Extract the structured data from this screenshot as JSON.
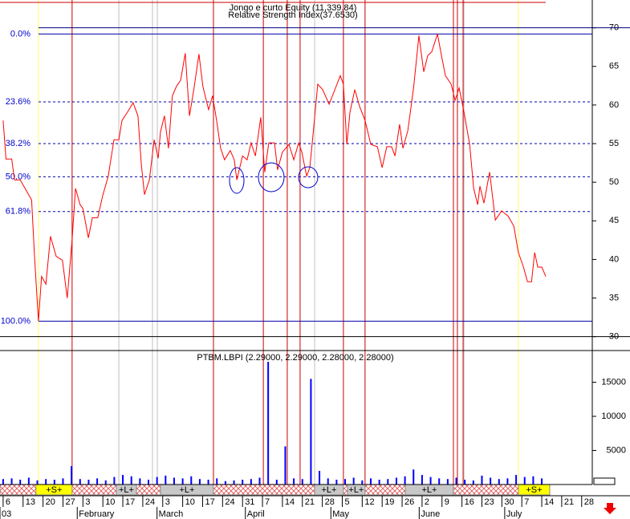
{
  "chart_data": [
    {
      "type": "line",
      "title": "Jongo e curto Equity (11,339.84)",
      "subtitle": "Relative Strength Index(37.6530)",
      "color": "#ff0000",
      "x": [
        0,
        1,
        3,
        4,
        6,
        10,
        11,
        12.4,
        13.5,
        15,
        16.6,
        18.6,
        20.8,
        22.5,
        24.2,
        25.4,
        27,
        28,
        29.9,
        31.3,
        33.2,
        34.9,
        36.9,
        38.9,
        40.6,
        41.7,
        44,
        45.6,
        47.3,
        48.5,
        49.6,
        51.3,
        53,
        54.4,
        55.2,
        56.6,
        58,
        59.4,
        60.8,
        62.3,
        63.9,
        65.4,
        67,
        68.7,
        70.1,
        72.1,
        73.5,
        74.9,
        76.3,
        77.7,
        79.7,
        81.1,
        82,
        84,
        85.6,
        87,
        88.5,
        90.4,
        91.8,
        93.2,
        95.2,
        96.3,
        98,
        100.3,
        102,
        103.7,
        104.8,
        106.5,
        107.6,
        108.7,
        110.4,
        112.1,
        114.4,
        116,
        118.3,
        119.4,
        120.6,
        121.7,
        123.4,
        125.1,
        127,
        129,
        131.3,
        133,
        134.6,
        136.3,
        137.5,
        139.1,
        140.3,
        142,
        144,
        145.9,
        147.6,
        149,
        150.4,
        152.4,
        153.8,
        155.2,
        157.2,
        158.6,
        160,
        161.7,
        163.7,
        165.1,
        166.5,
        167.3,
        168.7,
        170.7,
        172.7,
        174.9,
        177.2,
        179.2,
        180.8,
        182.5,
        184,
        185.4,
        186.5,
        187.6,
        189,
        190.4
      ],
      "values": [
        58,
        53,
        53,
        50.3,
        50.3,
        47.7,
        40.4,
        32,
        37.8,
        36.8,
        43,
        40.4,
        39.9,
        35,
        42.5,
        49.2,
        47.1,
        46.6,
        42.8,
        45.4,
        45.4,
        48.2,
        50.8,
        55.5,
        55.5,
        58,
        59.3,
        60.3,
        58.6,
        52.3,
        48.4,
        50.3,
        55.5,
        53.1,
        56.5,
        58.6,
        54.4,
        61.2,
        62.4,
        63.2,
        66.7,
        58.6,
        62.2,
        66.6,
        62.4,
        59.4,
        61.2,
        58,
        54.4,
        52.9,
        54.1,
        52.9,
        50.3,
        53.4,
        52.9,
        55.1,
        53.4,
        58.4,
        51.3,
        55.1,
        55.1,
        51.6,
        53.9,
        54.9,
        52.9,
        55.1,
        53.9,
        50.8,
        51.9,
        56,
        62.7,
        62,
        60.1,
        61.6,
        63.8,
        62.7,
        54.9,
        59.1,
        62,
        59.8,
        58,
        54.9,
        54.6,
        51.9,
        54.6,
        54.6,
        53.4,
        57.5,
        54.4,
        56.7,
        62.2,
        69,
        64.3,
        66.4,
        66.9,
        69.2,
        66.4,
        63.8,
        62.7,
        60.6,
        62.2,
        59.1,
        54.9,
        49.2,
        47.1,
        49.5,
        47.3,
        51.3,
        45.1,
        46.3,
        45.6,
        44.3,
        40.9,
        39.1,
        37.1,
        37.1,
        40.9,
        39,
        39,
        37.8
      ],
      "xlim": [
        -1.1,
        205.6
      ],
      "ylim": [
        28.2,
        73.6
      ],
      "yticks": [
        30,
        35,
        40,
        45,
        50,
        55,
        60,
        65,
        70
      ],
      "fib_levels": [
        {
          "label": "0.0%",
          "value": 69.2
        },
        {
          "label": "23.6%",
          "value": 60.4
        },
        {
          "label": "38.2%",
          "value": 55
        },
        {
          "label": "50.0%",
          "value": 50.7
        },
        {
          "label": "61.8%",
          "value": 46.2
        },
        {
          "label": "100.0%",
          "value": 32
        }
      ],
      "signal_lines": [
        {
          "color": "#cc0000",
          "x": [
            24.2,
            73.8,
            91.3,
            99.7,
            104.2,
            119.4,
            127,
            158,
            159.4,
            161.4
          ]
        },
        {
          "color": "#ffff66",
          "x": [
            12.4,
            180.8
          ]
        },
        {
          "color": "#c0c0c0",
          "x": [
            40.6,
            52.4,
            54.1,
            109.3,
            161.7
          ]
        }
      ]
    },
    {
      "type": "bar",
      "title": "PTBM.LBPI (2.29000, 2.29000, 2.28000, 2.28000)",
      "color": "#0000ff",
      "x": [
        0,
        3,
        6,
        9,
        12,
        15,
        18,
        21,
        24,
        27,
        30,
        33,
        36,
        39,
        42,
        45,
        48,
        51,
        54,
        57,
        60,
        63,
        66,
        69,
        72,
        75,
        78,
        81,
        84,
        87,
        90,
        93,
        96,
        99,
        102,
        105,
        108,
        111,
        114,
        117,
        120,
        123,
        126,
        129,
        132,
        135,
        138,
        141,
        144,
        147,
        150,
        153,
        156,
        159,
        162,
        165,
        168,
        171,
        174,
        177,
        180,
        183,
        186,
        189
      ],
      "values": [
        800,
        900,
        700,
        1000,
        600,
        800,
        700,
        900,
        2700,
        800,
        700,
        900,
        600,
        1100,
        1400,
        1200,
        900,
        700,
        1100,
        1300,
        1000,
        900,
        1200,
        800,
        700,
        900,
        500,
        600,
        700,
        800,
        1000,
        18000,
        700,
        5600,
        900,
        800,
        15500,
        2000,
        900,
        700,
        800,
        1000,
        600,
        900,
        700,
        800,
        1000,
        1200,
        2200,
        1400,
        1100,
        900,
        800,
        1000,
        700,
        600,
        1300,
        1000,
        800,
        900,
        1400,
        1100,
        1200,
        900
      ],
      "ylim": [
        0,
        19650
      ],
      "yticks": [
        5000,
        10000,
        15000
      ]
    }
  ],
  "x_axis": {
    "ticks": [
      {
        "value": 0,
        "label": "6"
      },
      {
        "value": 7,
        "label": "13"
      },
      {
        "value": 14,
        "label": "20"
      },
      {
        "value": 21,
        "label": "27"
      },
      {
        "value": 28,
        "label": "3"
      },
      {
        "value": 35,
        "label": "10"
      },
      {
        "value": 42,
        "label": "17"
      },
      {
        "value": 49,
        "label": "24"
      },
      {
        "value": 56,
        "label": "3"
      },
      {
        "value": 63,
        "label": "10"
      },
      {
        "value": 70,
        "label": "17"
      },
      {
        "value": 77,
        "label": "24"
      },
      {
        "value": 84,
        "label": "31"
      },
      {
        "value": 91,
        "label": "7"
      },
      {
        "value": 98,
        "label": "14"
      },
      {
        "value": 105,
        "label": "21"
      },
      {
        "value": 112,
        "label": "28"
      },
      {
        "value": 119,
        "label": "5"
      },
      {
        "value": 126,
        "label": "12"
      },
      {
        "value": 133,
        "label": "19"
      },
      {
        "value": 140,
        "label": "26"
      },
      {
        "value": 147,
        "label": "2"
      },
      {
        "value": 154,
        "label": "9"
      },
      {
        "value": 161,
        "label": "16"
      },
      {
        "value": 168,
        "label": "23"
      },
      {
        "value": 175,
        "label": "30"
      },
      {
        "value": 182,
        "label": "7"
      },
      {
        "value": 189,
        "label": "14"
      },
      {
        "value": 196,
        "label": "21"
      },
      {
        "value": 203,
        "label": "28"
      }
    ],
    "months": [
      {
        "value": -1.1,
        "label": "03"
      },
      {
        "value": 26,
        "label": "February"
      },
      {
        "value": 54,
        "label": "March"
      },
      {
        "value": 85,
        "label": "April"
      },
      {
        "value": 115,
        "label": "May"
      },
      {
        "value": 146,
        "label": "June"
      },
      {
        "value": 176,
        "label": "July"
      }
    ]
  },
  "signals": [
    {
      "label": "+S+",
      "start": 11.5,
      "end": 24.2,
      "color": "#ffff00"
    },
    {
      "label": "+L+",
      "start": 39.7,
      "end": 46.8,
      "color": "#c8c8c8"
    },
    {
      "label": "+L+",
      "start": 55.2,
      "end": 73.8,
      "color": "#c8c8c8"
    },
    {
      "label": "+L+",
      "start": 109.3,
      "end": 119.4,
      "color": "#c8c8c8"
    },
    {
      "label": "+L+",
      "start": 120.8,
      "end": 127,
      "color": "#c8c8c8"
    },
    {
      "label": "+L+",
      "start": 141.1,
      "end": 158,
      "color": "#c8c8c8"
    },
    {
      "label": "+S+",
      "start": 180.8,
      "end": 191.8,
      "color": "#ffff00"
    }
  ]
}
